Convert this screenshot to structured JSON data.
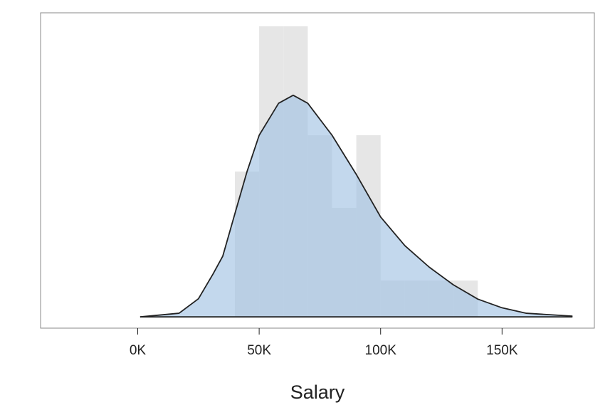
{
  "chart_data": {
    "type": "histogram",
    "xlabel": "Salary",
    "bins": [
      40000,
      50000,
      60000,
      70000,
      80000,
      90000,
      100000,
      110000,
      120000,
      130000,
      140000
    ],
    "counts": [
      4,
      8,
      8,
      5,
      3,
      5,
      1,
      1,
      1,
      1
    ],
    "color": "#e6e6e6",
    "density": {
      "x": [
        1000,
        17000,
        25000,
        31000,
        35000,
        40000,
        45000,
        50000,
        58000,
        64000,
        70000,
        80000,
        90000,
        100000,
        110000,
        120000,
        130000,
        140000,
        150000,
        160000,
        179000
      ],
      "values": [
        0,
        0.1,
        0.5,
        1.18,
        1.67,
        2.84,
        4.0,
        5.0,
        5.88,
        6.1,
        5.88,
        5.0,
        3.92,
        2.75,
        1.96,
        1.37,
        0.88,
        0.49,
        0.25,
        0.1,
        0.02
      ],
      "color": "#a3c3e4",
      "line_color": "#222222"
    },
    "xlim": [
      -40000,
      188000
    ],
    "ylim": [
      -0.31,
      8.37
    ],
    "xticks": [
      {
        "value": 0,
        "label": "0K"
      },
      {
        "value": 50000,
        "label": "50K"
      },
      {
        "value": 100000,
        "label": "100K"
      },
      {
        "value": 150000,
        "label": "150K"
      }
    ]
  }
}
